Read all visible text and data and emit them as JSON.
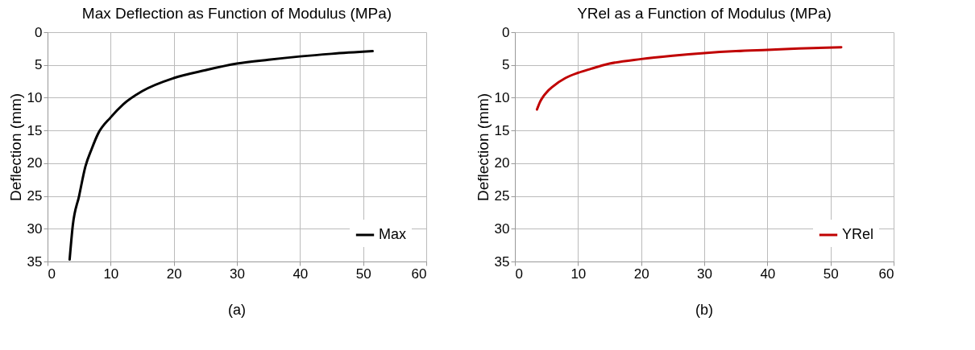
{
  "chart_data": [
    {
      "type": "line",
      "title": "Max Deflection as Function of Modulus (MPa)",
      "ylabel": "Deflection (mm)",
      "x": [
        3.5,
        4,
        5,
        6,
        7,
        8,
        10,
        12,
        15,
        20,
        25,
        30,
        35,
        40,
        45,
        51.5
      ],
      "series": [
        {
          "name": "Max",
          "color": "#000000",
          "values": [
            34.7,
            29.5,
            25,
            20.5,
            17.8,
            15.5,
            13,
            11,
            9,
            7,
            5.8,
            4.8,
            4.2,
            3.7,
            3.3,
            2.9
          ]
        }
      ],
      "xlim": [
        0,
        60
      ],
      "xticks": [
        0,
        10,
        20,
        30,
        40,
        50,
        60
      ],
      "ylim": [
        35,
        0
      ],
      "yticks": [
        0,
        5,
        10,
        15,
        20,
        25,
        30,
        35
      ],
      "grid": true,
      "legend": "bottom right",
      "marker": "none",
      "line_style": "solid",
      "annotations": [
        "(a)"
      ]
    },
    {
      "type": "line",
      "title": "YRel as a Function of Modulus (MPa)",
      "ylabel": "Deflection (mm)",
      "x": [
        3.5,
        4,
        4.5,
        5,
        6,
        8,
        10,
        12,
        15,
        20,
        25,
        30,
        35,
        40,
        45,
        51.7
      ],
      "series": [
        {
          "name": "YRel",
          "color": "#c00000",
          "values": [
            11.8,
            10.6,
            9.8,
            9.2,
            8.3,
            7,
            6.2,
            5.6,
            4.8,
            4.1,
            3.6,
            3.2,
            2.9,
            2.7,
            2.5,
            2.3
          ]
        }
      ],
      "xlim": [
        0,
        60
      ],
      "xticks": [
        0,
        10,
        20,
        30,
        40,
        50,
        60
      ],
      "ylim": [
        35,
        0
      ],
      "yticks": [
        0,
        5,
        10,
        15,
        20,
        25,
        30,
        35
      ],
      "grid": true,
      "legend": "bottom right",
      "marker": "none",
      "line_style": "solid",
      "annotations": [
        "(b)"
      ]
    }
  ]
}
